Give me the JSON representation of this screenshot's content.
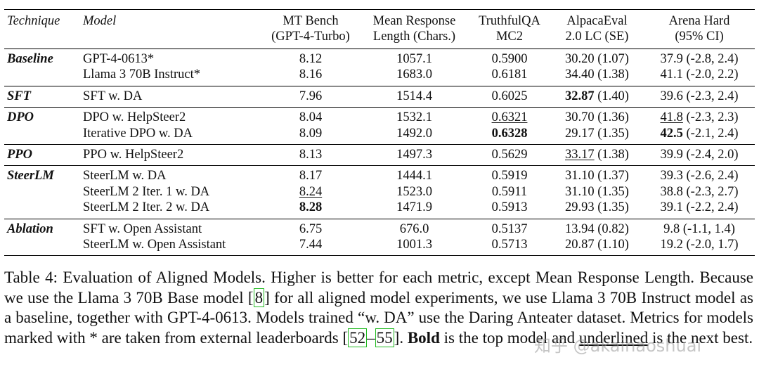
{
  "table": {
    "headers": {
      "technique": "Technique",
      "model": "Model",
      "mt_bench_1": "MT Bench",
      "mt_bench_2": "(GPT-4-Turbo)",
      "mean_resp_1": "Mean Response",
      "mean_resp_2": "Length (Chars.)",
      "truthful_1": "TruthfulQA",
      "truthful_2": "MC2",
      "alpaca_1": "AlpacaEval",
      "alpaca_2": "2.0 LC (SE)",
      "arena_1": "Arena Hard",
      "arena_2": "(95% CI)"
    },
    "groups": [
      {
        "technique": "Baseline",
        "rows": [
          {
            "model": "GPT-4-0613*",
            "mt": "8.12",
            "len": "1057.1",
            "tqa": "0.5900",
            "alp_main": "30.20",
            "alp_rest": " (1.07)",
            "arena_main": "37.9",
            "arena_rest": " (-2.8, 2.4)"
          },
          {
            "model": "Llama 3 70B Instruct*",
            "mt": "8.16",
            "len": "1683.0",
            "tqa": "0.6181",
            "alp_main": "34.40",
            "alp_rest": " (1.38)",
            "arena_main": "41.1",
            "arena_rest": " (-2.0, 2.2)"
          }
        ]
      },
      {
        "technique": "SFT",
        "rows": [
          {
            "model": "SFT w. DA",
            "mt": "7.96",
            "len": "1514.4",
            "tqa": "0.6025",
            "alp_main": "32.87",
            "alp_rest": " (1.40)",
            "arena_main": "39.6",
            "arena_rest": " (-2.3, 2.4)"
          }
        ]
      },
      {
        "technique": "DPO",
        "rows": [
          {
            "model": "DPO w. HelpSteer2",
            "mt": "8.04",
            "len": "1532.1",
            "tqa": "0.6321",
            "alp_main": "30.70",
            "alp_rest": " (1.36)",
            "arena_main": "41.8",
            "arena_rest": " (-2.3, 2.3)"
          },
          {
            "model": "Iterative DPO w. DA",
            "mt": "8.09",
            "len": "1492.0",
            "tqa": "0.6328",
            "alp_main": "29.17",
            "alp_rest": " (1.35)",
            "arena_main": "42.5",
            "arena_rest": " (-2.1, 2.4)"
          }
        ]
      },
      {
        "technique": "PPO",
        "rows": [
          {
            "model": "PPO w. HelpSteer2",
            "mt": "8.13",
            "len": "1497.3",
            "tqa": "0.5629",
            "alp_main": "33.17",
            "alp_rest": " (1.38)",
            "arena_main": "39.9",
            "arena_rest": " (-2.4, 2.0)"
          }
        ]
      },
      {
        "technique": "SteerLM",
        "rows": [
          {
            "model": "SteerLM w. DA",
            "mt": "8.17",
            "len": "1444.1",
            "tqa": "0.5919",
            "alp_main": "31.10",
            "alp_rest": " (1.37)",
            "arena_main": "39.3",
            "arena_rest": " (-2.6, 2.4)"
          },
          {
            "model": "SteerLM 2 Iter. 1 w. DA",
            "mt": "8.24",
            "len": "1523.0",
            "tqa": "0.5911",
            "alp_main": "31.10",
            "alp_rest": " (1.35)",
            "arena_main": "38.8",
            "arena_rest": " (-2.3, 2.7)"
          },
          {
            "model": "SteerLM 2 Iter. 2 w. DA",
            "mt": "8.28",
            "len": "1471.9",
            "tqa": "0.5913",
            "alp_main": "29.93",
            "alp_rest": " (1.35)",
            "arena_main": "39.1",
            "arena_rest": " (-2.2, 2.4)"
          }
        ]
      },
      {
        "technique": "Ablation",
        "rows": [
          {
            "model": "SFT w. Open Assistant",
            "mt": "6.75",
            "len": "676.0",
            "tqa": "0.5137",
            "alp_main": "13.94",
            "alp_rest": " (0.82)",
            "arena_main": "9.8",
            "arena_rest": " (-1.1, 1.4)"
          },
          {
            "model": "SteerLM w. Open Assistant",
            "mt": "7.44",
            "len": "1001.3",
            "tqa": "0.5713",
            "alp_main": "20.87",
            "alp_rest": " (1.10)",
            "arena_main": "19.2",
            "arena_rest": " (-2.0, 1.7)"
          }
        ]
      }
    ]
  },
  "caption": {
    "p1": "Table 4:   Evaluation of Aligned Models. Higher is better for each metric, except Mean Response Length. Because we use the Llama 3 70B Base model [",
    "ref1": "8",
    "p2": "] for all aligned model experiments, we use Llama 3 70B Instruct model as a baseline, together with GPT-4-0613. Models trained “w. DA” use the Daring Anteater dataset. Metrics for models marked with * are taken from external leaderboards [",
    "ref2a": "52",
    "dash": "–",
    "ref2b": "55",
    "p3": "]. ",
    "bold_word": "Bold",
    "p4": " is the top model and ",
    "underlined_word": "underlined",
    "p5": " is the next best."
  },
  "watermark": "知乎 @akaihaoshuai"
}
